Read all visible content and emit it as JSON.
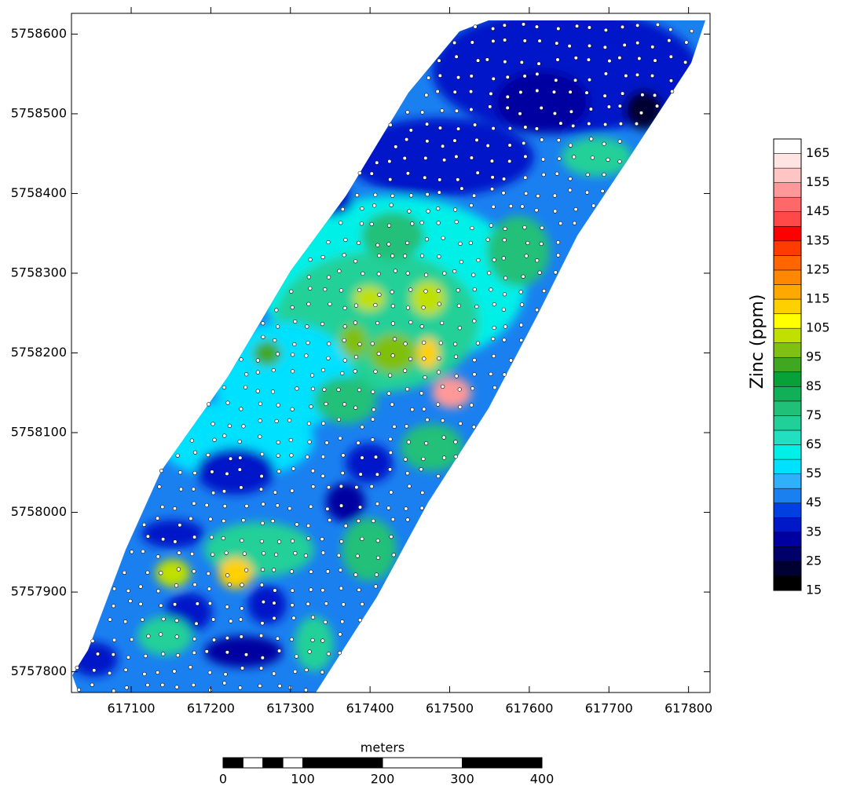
{
  "chart_data": {
    "type": "contour",
    "xlim": [
      617025,
      617827
    ],
    "xticks": [
      617100,
      617200,
      617300,
      617400,
      617500,
      617600,
      617700,
      617800
    ],
    "ylim": [
      5757774,
      5758626
    ],
    "yticks": [
      5757800,
      5757900,
      5758000,
      5758100,
      5758200,
      5758300,
      5758400,
      5758500,
      5758600
    ],
    "colorbar": {
      "label": "Zinc (ppm)",
      "levels": [
        15,
        20,
        25,
        30,
        35,
        40,
        45,
        50,
        55,
        60,
        65,
        70,
        75,
        80,
        85,
        90,
        95,
        100,
        105,
        110,
        115,
        120,
        125,
        130,
        135,
        140,
        145,
        150,
        155,
        160,
        165,
        170
      ],
      "colors": [
        "#000000",
        "#000033",
        "#00006b",
        "#0000a0",
        "#0018c8",
        "#0040e0",
        "#1a80f0",
        "#30b0f8",
        "#00e0ff",
        "#00f0e8",
        "#20e0c0",
        "#20d098",
        "#20c078",
        "#10b058",
        "#08a038",
        "#40a820",
        "#80c010",
        "#c0e000",
        "#ffff00",
        "#ffd000",
        "#ffa800",
        "#ff8800",
        "#ff6600",
        "#ff3c00",
        "#ff0000",
        "#ff4848",
        "#ff6868",
        "#ff9898",
        "#ffc4c4",
        "#ffe4e4",
        "#ffffff"
      ],
      "ticks": [
        15,
        25,
        35,
        45,
        55,
        65,
        75,
        85,
        95,
        105,
        115,
        125,
        135,
        145,
        155,
        165
      ]
    },
    "scale_bar": {
      "label": "meters",
      "edges": [
        0,
        25,
        50,
        75,
        100,
        200,
        300,
        400
      ],
      "ticks": [
        0,
        100,
        200,
        300,
        400
      ]
    }
  }
}
